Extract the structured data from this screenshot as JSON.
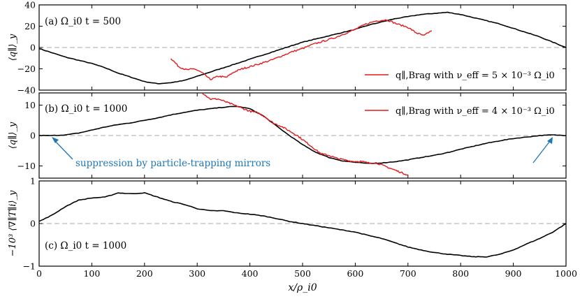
{
  "chart_data": [
    {
      "type": "line",
      "panel": "a",
      "annotation": "(a) Ω_i0 t = 500",
      "ylabel": "⟨q∥⟩_y",
      "ylim": [
        -40,
        40
      ],
      "yticks": [
        -40,
        -20,
        0,
        20,
        40
      ],
      "xlim": [
        0,
        1000
      ],
      "series": [
        {
          "name": "⟨q∥⟩_y",
          "color": "#000000",
          "x": [
            0,
            25,
            50,
            75,
            100,
            125,
            150,
            175,
            200,
            225,
            250,
            275,
            300,
            325,
            350,
            375,
            400,
            425,
            450,
            475,
            500,
            525,
            550,
            575,
            600,
            625,
            650,
            675,
            700,
            725,
            750,
            775,
            800,
            825,
            850,
            875,
            900,
            925,
            950,
            975,
            1000
          ],
          "y": [
            -1,
            -5,
            -9,
            -12,
            -15,
            -19,
            -24,
            -28,
            -32,
            -34,
            -33,
            -31,
            -27,
            -23,
            -19,
            -15,
            -11,
            -7,
            -3,
            1,
            5,
            8,
            11,
            14,
            17,
            21,
            24,
            27,
            29,
            31,
            32,
            33,
            31,
            28,
            25,
            22,
            18,
            14,
            10,
            5,
            0
          ]
        },
        {
          "name": "q∥,Brag with ν_eff = 5 × 10⁻³ Ω_i0",
          "color": "#e41a1c",
          "x": [
            250,
            265,
            280,
            295,
            310,
            325,
            340,
            355,
            370,
            385,
            400,
            420,
            440,
            460,
            480,
            500,
            520,
            540,
            560,
            580,
            600,
            620,
            640,
            660,
            680,
            700,
            715,
            730,
            745
          ],
          "y": [
            -10,
            -18,
            -21,
            -20,
            -24,
            -30,
            -27,
            -28,
            -23,
            -20,
            -18,
            -15,
            -12,
            -8,
            -4,
            -1,
            3,
            6,
            9,
            13,
            17,
            22,
            25,
            26,
            22,
            19,
            14,
            11,
            16
          ]
        }
      ],
      "legend": {
        "label": "q∥,Brag with ν_eff = 5 × 10⁻³ Ω_i0",
        "position": "lower-right"
      }
    },
    {
      "type": "line",
      "panel": "b",
      "annotation": "(b) Ω_i0 t = 1000",
      "ylabel": "⟨q∥⟩_y",
      "ylim": [
        -14,
        14
      ],
      "yticks": [
        -10,
        0,
        10
      ],
      "xlim": [
        0,
        1000
      ],
      "series": [
        {
          "name": "⟨q∥⟩_y",
          "color": "#000000",
          "x": [
            0,
            25,
            50,
            75,
            100,
            125,
            150,
            175,
            200,
            225,
            250,
            275,
            300,
            325,
            350,
            375,
            400,
            425,
            450,
            475,
            500,
            525,
            550,
            575,
            600,
            625,
            650,
            675,
            700,
            725,
            750,
            775,
            800,
            825,
            850,
            875,
            900,
            925,
            950,
            975,
            1000
          ],
          "y": [
            0,
            0,
            0.2,
            0.8,
            1.8,
            2.8,
            3.6,
            4.2,
            5.0,
            5.8,
            6.8,
            7.6,
            8.3,
            8.8,
            9.3,
            9.6,
            8.8,
            6.5,
            3.2,
            0,
            -3.0,
            -5.5,
            -7.2,
            -8.3,
            -8.8,
            -9.2,
            -9.0,
            -8.6,
            -8.0,
            -7.2,
            -6.5,
            -5.6,
            -4.5,
            -3.5,
            -2.5,
            -1.7,
            -1.0,
            -0.5,
            0,
            0.2,
            0
          ]
        },
        {
          "name": "q∥,Brag with ν_eff = 4 × 10⁻³ Ω_i0",
          "color": "#e41a1c",
          "x": [
            310,
            325,
            340,
            355,
            370,
            385,
            400,
            415,
            430,
            445,
            460,
            475,
            490,
            505,
            520,
            535,
            550,
            565,
            580,
            595,
            610,
            625,
            640,
            655,
            670,
            685,
            700
          ],
          "y": [
            14,
            12,
            12,
            11,
            10,
            9,
            8,
            7.5,
            6,
            4,
            3,
            1.5,
            0,
            -2,
            -4,
            -6,
            -6.5,
            -7.5,
            -8,
            -8.5,
            -8.5,
            -9,
            -9,
            -10,
            -11,
            -12,
            -13
          ]
        }
      ],
      "legend": {
        "label": "q∥,Brag with ν_eff = 4 × 10⁻³ Ω_i0",
        "position": "upper-right"
      },
      "note": "suppression by particle-trapping mirrors"
    },
    {
      "type": "line",
      "panel": "c",
      "annotation": "(c) Ω_i0 t = 1000",
      "ylabel": "−10³ ⟨∇∥T∥i⟩_y",
      "ylim": [
        -1,
        1
      ],
      "yticks": [
        -1,
        0,
        1
      ],
      "xlim": [
        0,
        1000
      ],
      "xticks": [
        0,
        100,
        200,
        300,
        400,
        500,
        600,
        700,
        800,
        900,
        1000
      ],
      "xlabel": "x/ρ_i0",
      "series": [
        {
          "name": "−10³ ⟨∇∥T∥i⟩_y",
          "color": "#000000",
          "x": [
            0,
            25,
            50,
            75,
            100,
            125,
            150,
            175,
            200,
            225,
            250,
            275,
            300,
            325,
            350,
            375,
            400,
            425,
            450,
            475,
            500,
            525,
            550,
            575,
            600,
            625,
            650,
            675,
            700,
            725,
            750,
            775,
            800,
            825,
            850,
            875,
            900,
            925,
            950,
            975,
            1000
          ],
          "y": [
            0.05,
            0.2,
            0.4,
            0.55,
            0.6,
            0.62,
            0.72,
            0.7,
            0.72,
            0.62,
            0.52,
            0.45,
            0.35,
            0.3,
            0.3,
            0.25,
            0.22,
            0.18,
            0.12,
            0.05,
            0.0,
            -0.05,
            -0.1,
            -0.15,
            -0.2,
            -0.28,
            -0.35,
            -0.45,
            -0.55,
            -0.62,
            -0.68,
            -0.72,
            -0.75,
            -0.78,
            -0.78,
            -0.72,
            -0.62,
            -0.48,
            -0.35,
            -0.2,
            0.0
          ]
        }
      ]
    }
  ]
}
